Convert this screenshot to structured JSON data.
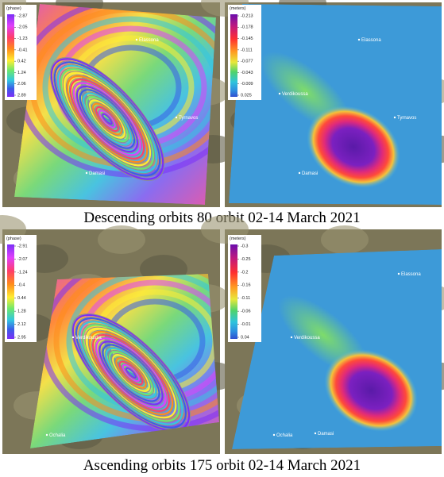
{
  "rows": [
    {
      "caption": "Descending orbits 80 orbit 02-14 March 2021",
      "panels": [
        {
          "colorbar": {
            "title": "(phase)",
            "ticks": [
              "-2.87",
              "-2.05",
              "-1.23",
              "-0.41",
              "0.42",
              "1.24",
              "2.06",
              "2.89"
            ]
          },
          "places": [
            "Elassona",
            "Tyrnavos",
            "Damasi"
          ]
        },
        {
          "colorbar": {
            "title": "(meters)",
            "ticks": [
              "-0.213",
              "-0.178",
              "-0.145",
              "-0.111",
              "-0.077",
              "-0.043",
              "-0.009",
              "0.025"
            ]
          },
          "places": [
            "Elassona",
            "Verdikoussa",
            "Tyrnavos",
            "Damasi"
          ]
        }
      ]
    },
    {
      "caption": "Ascending orbits 175 orbit 02-14 March 2021",
      "panels": [
        {
          "colorbar": {
            "title": "(phase)",
            "ticks": [
              "-2.91",
              "-2.07",
              "-1.24",
              "-0.4",
              "0.44",
              "1.28",
              "2.12",
              "2.95"
            ]
          },
          "places": [
            "Verdikoussa",
            "Ochalia"
          ]
        },
        {
          "colorbar": {
            "title": "(meters)",
            "ticks": [
              "-0.3",
              "-0.25",
              "-0.2",
              "-0.16",
              "-0.11",
              "-0.06",
              "-0.01",
              "0.04"
            ]
          },
          "places": [
            "Elassona",
            "Verdikoussa",
            "Ochalia",
            "Damasi"
          ]
        }
      ]
    }
  ]
}
